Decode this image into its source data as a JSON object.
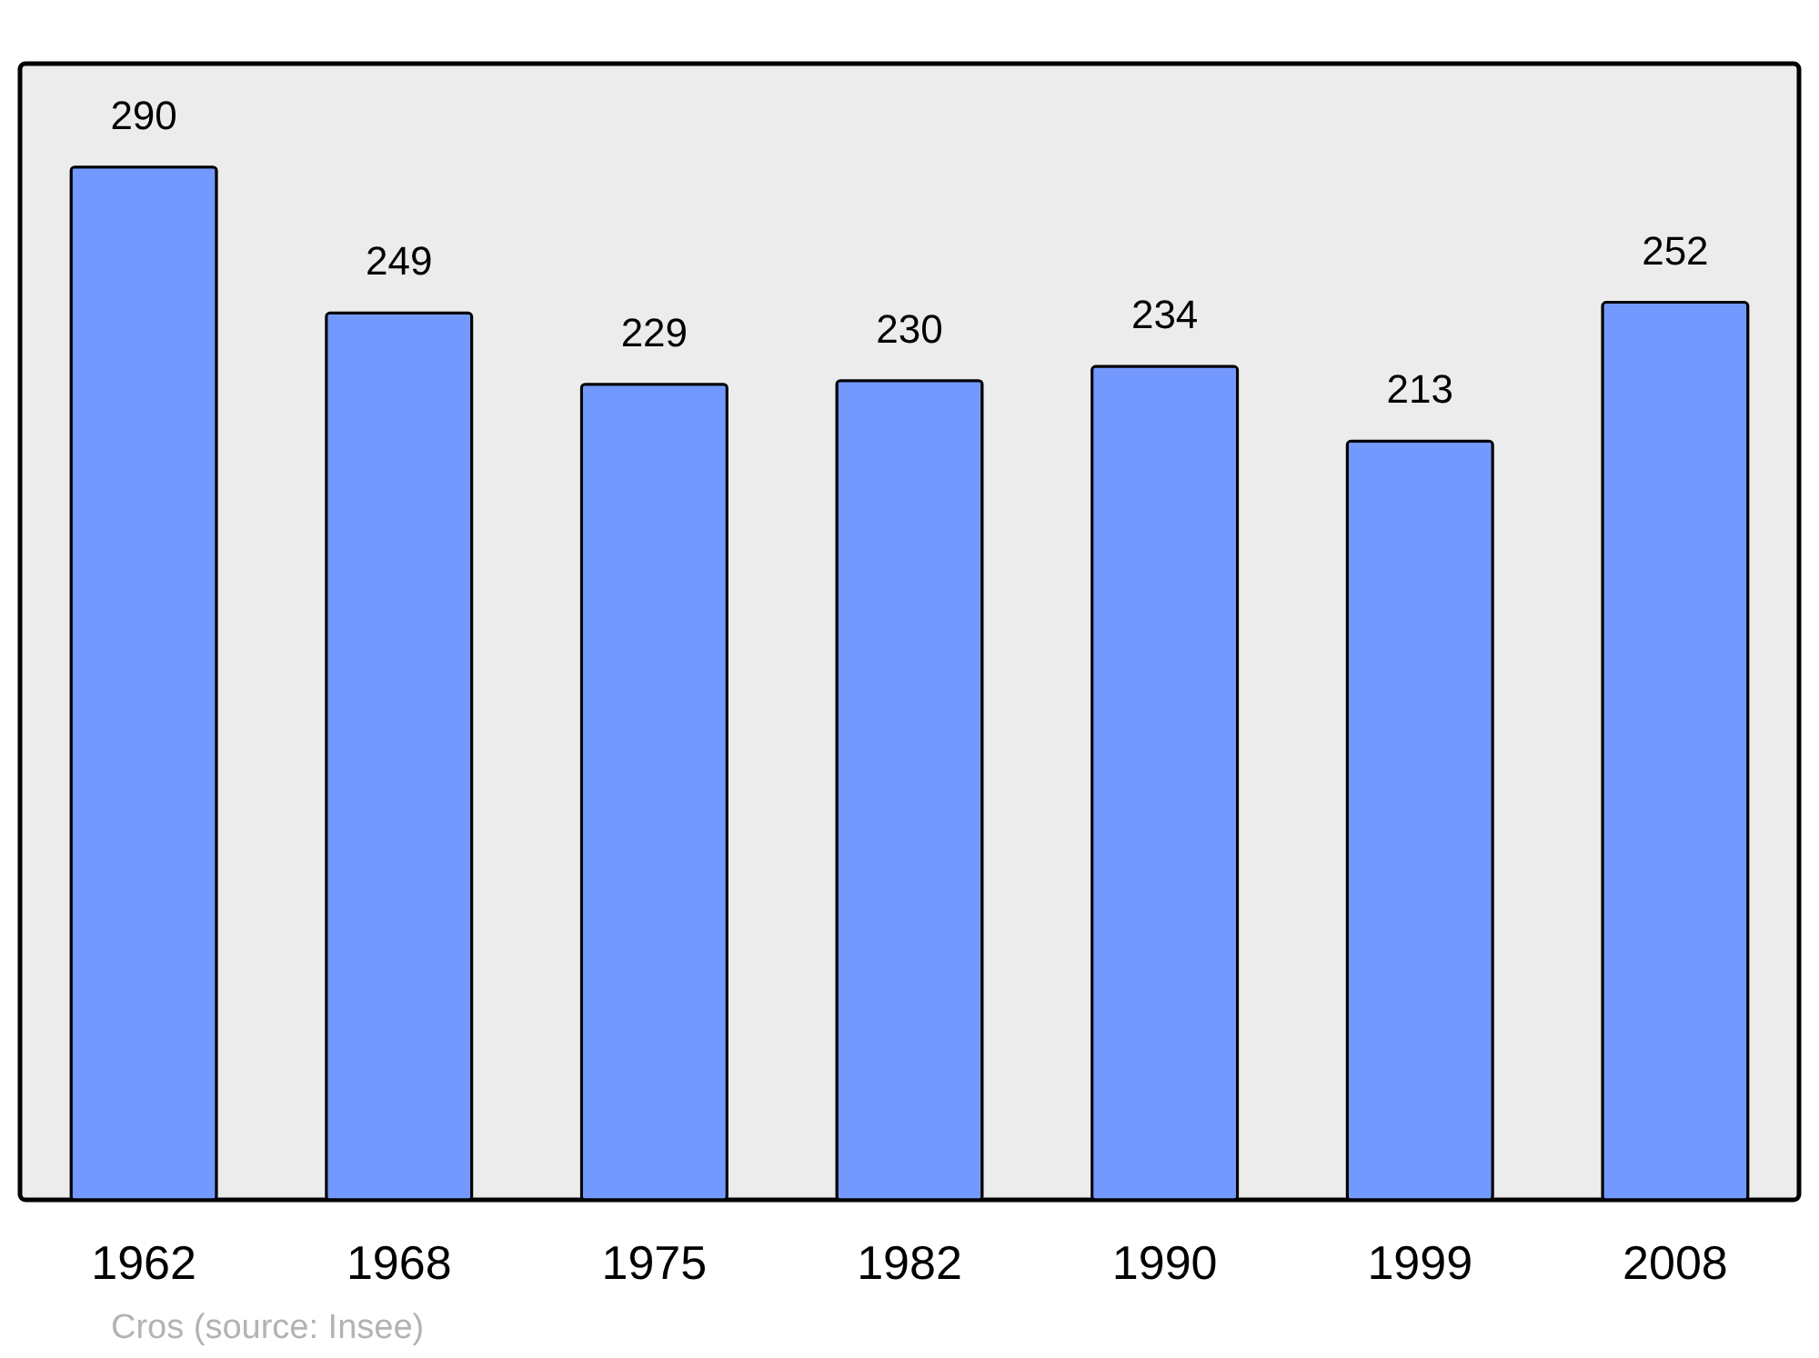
{
  "chart_data": {
    "type": "bar",
    "categories": [
      "1962",
      "1968",
      "1975",
      "1982",
      "1990",
      "1999",
      "2008"
    ],
    "values": [
      290,
      249,
      229,
      230,
      234,
      213,
      252
    ],
    "color": "#7399ff",
    "data_labels": true,
    "annotations": [
      "Cros    (source: Insee)"
    ]
  }
}
